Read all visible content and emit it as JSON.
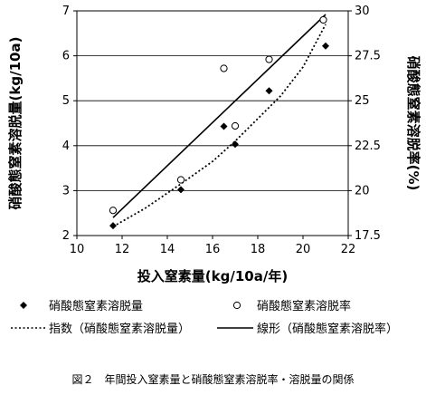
{
  "chart_data": {
    "type": "scatter",
    "x_axis": {
      "label": "投入窒素量(kg/10a/年)",
      "range": [
        10,
        22
      ],
      "ticks": [
        "10",
        "12",
        "14",
        "16",
        "18",
        "20",
        "22"
      ]
    },
    "y_left": {
      "label": "硝酸態窒素溶脱量(kg/10a)",
      "range": [
        2,
        7
      ],
      "ticks": [
        "2",
        "3",
        "4",
        "5",
        "6",
        "7"
      ]
    },
    "y_right": {
      "label": "硝酸態窒素溶脱率(%)",
      "range": [
        17.5,
        30
      ],
      "ticks": [
        "17.5",
        "20",
        "22.5",
        "25",
        "27.5",
        "30"
      ]
    },
    "series": [
      {
        "name": "硝酸態窒素溶脱量",
        "marker": "filled-diamond",
        "axis": "left",
        "x": [
          11.6,
          14.6,
          16.5,
          17.0,
          18.5,
          21.0
        ],
        "y": [
          2.22,
          3.02,
          4.43,
          4.03,
          5.22,
          6.22
        ]
      },
      {
        "name": "硝酸態窒素溶脱率",
        "marker": "open-circle",
        "axis": "right",
        "x": [
          11.6,
          14.6,
          16.5,
          17.0,
          18.5,
          20.9
        ],
        "y": [
          18.9,
          20.6,
          26.8,
          23.6,
          27.3,
          29.5
        ]
      },
      {
        "name": "指数（硝酸態窒素溶脱量）",
        "line": "dotted",
        "axis": "left",
        "x": [
          11.6,
          13,
          14.6,
          16,
          17,
          18,
          19,
          20,
          21
        ],
        "y": [
          2.2,
          2.6,
          3.15,
          3.65,
          4.1,
          4.6,
          5.1,
          5.75,
          6.7
        ]
      },
      {
        "name": "線形（硝酸態窒素溶脱率）",
        "line": "solid",
        "axis": "right",
        "x": [
          11.6,
          21.0
        ],
        "y": [
          18.5,
          29.8
        ]
      }
    ],
    "legend": [
      {
        "symbol": "filled-diamond",
        "label": "硝酸態窒素溶脱量"
      },
      {
        "symbol": "open-circle",
        "label": "硝酸態窒素溶脱率"
      },
      {
        "symbol": "dotted-line",
        "label": "指数（硝酸態窒素溶脱量）"
      },
      {
        "symbol": "solid-line",
        "label": "線形（硝酸態窒素溶脱率）"
      }
    ],
    "grid": "horizontal",
    "legend_position": "bottom"
  },
  "caption": "図２　年間投入窒素量と硝酸態窒素溶脱率・溶脱量の関係"
}
